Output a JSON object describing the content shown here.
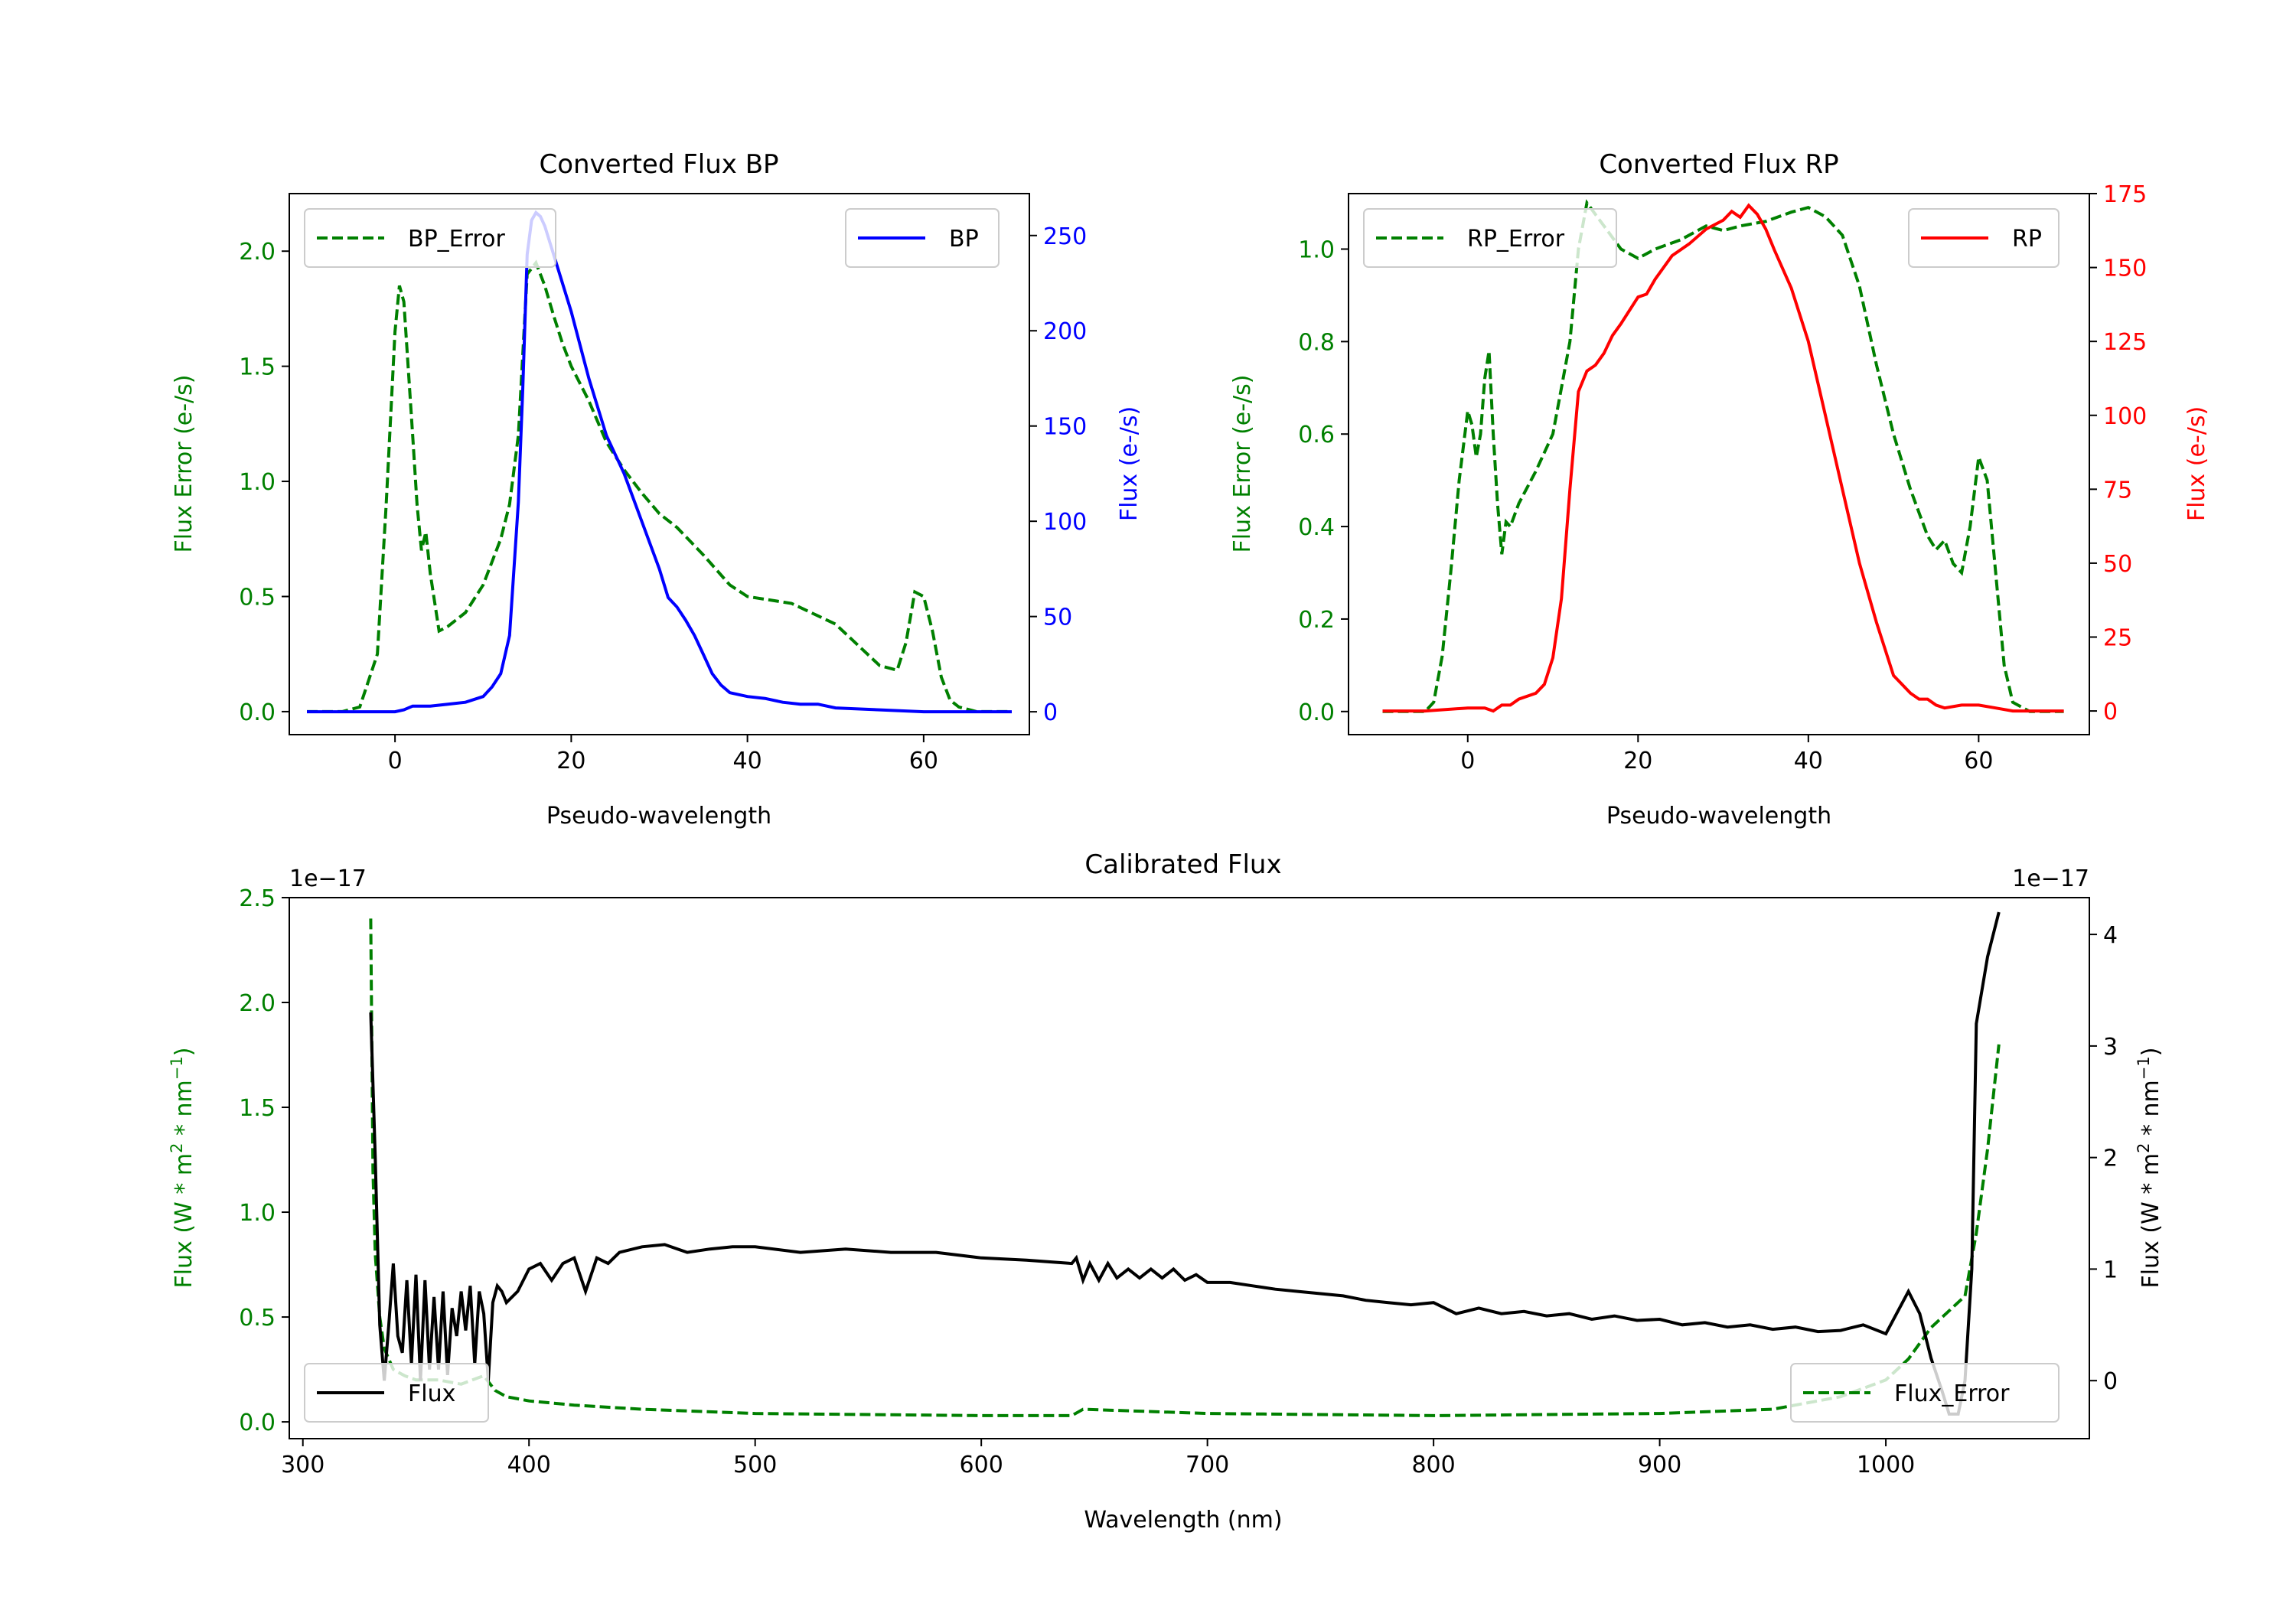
{
  "colors": {
    "bp_error": "#008000",
    "bp": "#0000ff",
    "rp_error": "#008000",
    "rp": "#ff0000",
    "flux": "#000000",
    "flux_error": "#008000"
  },
  "chart_data": [
    {
      "id": "bp",
      "type": "line",
      "title": "Converted Flux BP",
      "xlabel": "Pseudo-wavelength",
      "ylabel_left": "Flux Error (e-/s)",
      "ylabel_right": "Flux (e-/s)",
      "xlim": [
        -12,
        72
      ],
      "ylim_left": [
        -0.1,
        2.25
      ],
      "ylim_right": [
        -12,
        272
      ],
      "xticks": [
        0,
        20,
        40,
        60
      ],
      "yticks_left": [
        0.0,
        0.5,
        1.0,
        1.5,
        2.0
      ],
      "yticks_right": [
        0,
        50,
        100,
        150,
        200,
        250
      ],
      "legend_left": "top-left",
      "legend_right": "top-right",
      "series": [
        {
          "name": "BP_Error",
          "axis": "left",
          "style": "dashed",
          "x": [
            -10,
            -6,
            -4,
            -2,
            -1,
            0,
            0.5,
            1,
            2,
            2.5,
            3,
            3.5,
            4,
            5,
            6,
            8,
            10,
            12,
            13,
            14,
            15,
            16,
            17,
            18,
            19,
            20,
            22,
            24,
            26,
            28,
            30,
            32,
            35,
            38,
            40,
            45,
            50,
            55,
            57,
            58,
            59,
            60,
            61,
            62,
            63,
            64,
            66,
            68,
            70
          ],
          "y": [
            0.0,
            0.0,
            0.02,
            0.25,
            0.9,
            1.65,
            1.85,
            1.78,
            1.2,
            0.9,
            0.7,
            0.78,
            0.6,
            0.35,
            0.37,
            0.43,
            0.55,
            0.75,
            0.9,
            1.2,
            1.9,
            1.95,
            1.85,
            1.72,
            1.6,
            1.5,
            1.35,
            1.17,
            1.05,
            0.95,
            0.86,
            0.8,
            0.68,
            0.55,
            0.5,
            0.47,
            0.38,
            0.2,
            0.18,
            0.3,
            0.52,
            0.5,
            0.35,
            0.15,
            0.05,
            0.02,
            0.0,
            0.0,
            0.0
          ]
        },
        {
          "name": "BP",
          "axis": "right",
          "style": "solid",
          "x": [
            -10,
            -5,
            -2,
            0,
            1,
            2,
            4,
            6,
            8,
            10,
            11,
            12,
            13,
            14,
            14.5,
            15,
            15.5,
            16,
            16.5,
            17,
            18,
            19,
            20,
            22,
            24,
            26,
            28,
            30,
            31,
            32,
            33,
            34,
            35,
            36,
            37,
            38,
            40,
            42,
            44,
            46,
            48,
            50,
            55,
            60,
            62,
            65,
            70
          ],
          "y": [
            0,
            0,
            0,
            0,
            1,
            3,
            3,
            4,
            5,
            8,
            13,
            20,
            40,
            110,
            170,
            240,
            258,
            262,
            260,
            255,
            240,
            225,
            210,
            175,
            145,
            125,
            100,
            75,
            60,
            55,
            48,
            40,
            30,
            20,
            14,
            10,
            8,
            7,
            5,
            4,
            4,
            2,
            1,
            0,
            0,
            0,
            0
          ]
        }
      ]
    },
    {
      "id": "rp",
      "type": "line",
      "title": "Converted Flux RP",
      "xlabel": "Pseudo-wavelength",
      "ylabel_left": "Flux Error (e-/s)",
      "ylabel_right": "Flux (e-/s)",
      "xlim": [
        -14,
        73
      ],
      "ylim_left": [
        -0.05,
        1.12
      ],
      "ylim_right": [
        -8,
        175
      ],
      "xticks": [
        0,
        20,
        40,
        60
      ],
      "yticks_left": [
        0.0,
        0.2,
        0.4,
        0.6,
        0.8,
        1.0
      ],
      "yticks_right": [
        0,
        25,
        50,
        75,
        100,
        125,
        150,
        175
      ],
      "legend_left": "top-left",
      "legend_right": "top-right",
      "series": [
        {
          "name": "RP_Error",
          "axis": "left",
          "style": "dashed",
          "x": [
            -10,
            -5,
            -4,
            -3,
            -2,
            -1,
            0,
            0.5,
            1,
            1.5,
            2,
            2.5,
            3,
            3.5,
            4,
            4.5,
            5,
            6,
            8,
            10,
            11,
            12,
            13,
            14,
            16,
            18,
            20,
            22,
            25,
            28,
            30,
            32,
            35,
            38,
            40,
            42,
            44,
            46,
            48,
            50,
            52,
            54,
            55,
            56,
            57,
            58,
            59,
            60,
            61,
            62,
            63,
            64,
            66,
            70
          ],
          "y": [
            0.0,
            0.0,
            0.02,
            0.12,
            0.3,
            0.5,
            0.65,
            0.62,
            0.55,
            0.6,
            0.72,
            0.78,
            0.6,
            0.45,
            0.34,
            0.41,
            0.4,
            0.45,
            0.52,
            0.6,
            0.7,
            0.8,
            1.0,
            1.1,
            1.05,
            1.0,
            0.98,
            1.0,
            1.02,
            1.05,
            1.04,
            1.05,
            1.06,
            1.08,
            1.09,
            1.07,
            1.03,
            0.92,
            0.75,
            0.6,
            0.48,
            0.38,
            0.35,
            0.37,
            0.32,
            0.3,
            0.4,
            0.55,
            0.5,
            0.3,
            0.1,
            0.02,
            0.0,
            0.0
          ]
        },
        {
          "name": "RP",
          "axis": "right",
          "style": "solid",
          "x": [
            -10,
            -5,
            0,
            2,
            3,
            4,
            5,
            6,
            8,
            9,
            10,
            11,
            12,
            13,
            14,
            15,
            16,
            17,
            18,
            20,
            21,
            22,
            24,
            26,
            28,
            30,
            31,
            32,
            33,
            34,
            35,
            36,
            38,
            40,
            42,
            44,
            46,
            48,
            50,
            52,
            53,
            54,
            55,
            56,
            58,
            60,
            62,
            64,
            66,
            70
          ],
          "y": [
            0,
            0,
            1,
            1,
            0,
            2,
            2,
            4,
            6,
            9,
            18,
            38,
            75,
            108,
            115,
            117,
            121,
            127,
            131,
            140,
            141,
            146,
            154,
            158,
            163,
            166,
            169,
            167,
            171,
            168,
            163,
            156,
            143,
            125,
            100,
            75,
            50,
            30,
            12,
            6,
            4,
            4,
            2,
            1,
            2,
            2,
            1,
            0,
            0,
            0
          ]
        }
      ]
    },
    {
      "id": "calibrated",
      "type": "line",
      "title": "Calibrated Flux",
      "xlabel": "Wavelength (nm)",
      "ylabel_left": "Flux (W * m",
      "ylabel_right": "Flux (W * m",
      "ylabel_mid": " * nm",
      "ylabel_sup2": "2",
      "ylabel_supneg": "−1",
      "ylabel_close": ")",
      "offset_left": "1e−17",
      "offset_right": "1e−17",
      "xlim": [
        294,
        1090
      ],
      "ylim_left": [
        -0.08,
        2.5
      ],
      "ylim_right": [
        -0.52,
        4.33
      ],
      "xticks": [
        300,
        400,
        500,
        600,
        700,
        800,
        900,
        1000
      ],
      "yticks_left": [
        0.0,
        0.5,
        1.0,
        1.5,
        2.0,
        2.5
      ],
      "yticks_right": [
        0,
        1,
        2,
        3,
        4
      ],
      "legend_left": "bottom-left",
      "legend_right": "bottom-right",
      "series": [
        {
          "name": "Flux_Error",
          "axis": "left",
          "style": "dashed",
          "x": [
            330,
            331,
            332,
            334,
            336,
            338,
            340,
            345,
            350,
            360,
            370,
            375,
            380,
            385,
            390,
            395,
            400,
            420,
            450,
            500,
            600,
            640,
            645,
            700,
            800,
            900,
            950,
            980,
            1000,
            1010,
            1020,
            1030,
            1035,
            1040,
            1045,
            1050
          ],
          "y": [
            2.4,
            1.2,
            0.8,
            0.5,
            0.35,
            0.3,
            0.25,
            0.22,
            0.2,
            0.2,
            0.18,
            0.2,
            0.22,
            0.15,
            0.12,
            0.11,
            0.1,
            0.08,
            0.06,
            0.04,
            0.03,
            0.03,
            0.06,
            0.04,
            0.03,
            0.04,
            0.06,
            0.12,
            0.2,
            0.3,
            0.45,
            0.55,
            0.6,
            0.9,
            1.3,
            1.8
          ]
        },
        {
          "name": "Flux",
          "axis": "right",
          "style": "solid",
          "x": [
            330,
            332,
            334,
            336,
            338,
            340,
            342,
            344,
            346,
            348,
            350,
            352,
            354,
            356,
            358,
            360,
            362,
            364,
            366,
            368,
            370,
            372,
            374,
            376,
            378,
            380,
            382,
            384,
            386,
            388,
            390,
            395,
            400,
            405,
            410,
            415,
            420,
            425,
            430,
            435,
            440,
            450,
            460,
            470,
            480,
            490,
            500,
            520,
            540,
            560,
            580,
            600,
            620,
            640,
            642,
            645,
            648,
            652,
            656,
            660,
            665,
            670,
            675,
            680,
            685,
            690,
            695,
            700,
            710,
            720,
            730,
            740,
            750,
            760,
            770,
            780,
            790,
            800,
            810,
            820,
            830,
            840,
            850,
            860,
            870,
            880,
            890,
            900,
            910,
            920,
            930,
            940,
            950,
            960,
            970,
            980,
            990,
            1000,
            1010,
            1015,
            1020,
            1025,
            1028,
            1030,
            1032,
            1035,
            1038,
            1040,
            1045,
            1050
          ],
          "y": [
            3.3,
            2.0,
            0.5,
            0.0,
            0.5,
            1.05,
            0.4,
            0.25,
            0.9,
            0.15,
            0.95,
            0.0,
            0.9,
            0.1,
            0.75,
            0.1,
            0.8,
            0.05,
            0.65,
            0.4,
            0.8,
            0.45,
            0.85,
            0.15,
            0.8,
            0.6,
            0.0,
            0.7,
            0.85,
            0.8,
            0.7,
            0.8,
            1.0,
            1.05,
            0.9,
            1.05,
            1.1,
            0.8,
            1.1,
            1.05,
            1.15,
            1.2,
            1.22,
            1.15,
            1.18,
            1.2,
            1.2,
            1.15,
            1.18,
            1.15,
            1.15,
            1.1,
            1.08,
            1.05,
            1.1,
            0.9,
            1.05,
            0.9,
            1.05,
            0.92,
            1.0,
            0.92,
            1.0,
            0.92,
            1.0,
            0.9,
            0.95,
            0.88,
            0.88,
            0.85,
            0.82,
            0.8,
            0.78,
            0.76,
            0.72,
            0.7,
            0.68,
            0.7,
            0.6,
            0.65,
            0.6,
            0.62,
            0.58,
            0.6,
            0.55,
            0.58,
            0.54,
            0.55,
            0.5,
            0.52,
            0.48,
            0.5,
            0.46,
            0.48,
            0.44,
            0.45,
            0.5,
            0.42,
            0.8,
            0.6,
            0.2,
            -0.1,
            -0.3,
            -0.3,
            -0.3,
            0.0,
            1.0,
            3.2,
            3.8,
            4.2
          ]
        }
      ]
    }
  ]
}
